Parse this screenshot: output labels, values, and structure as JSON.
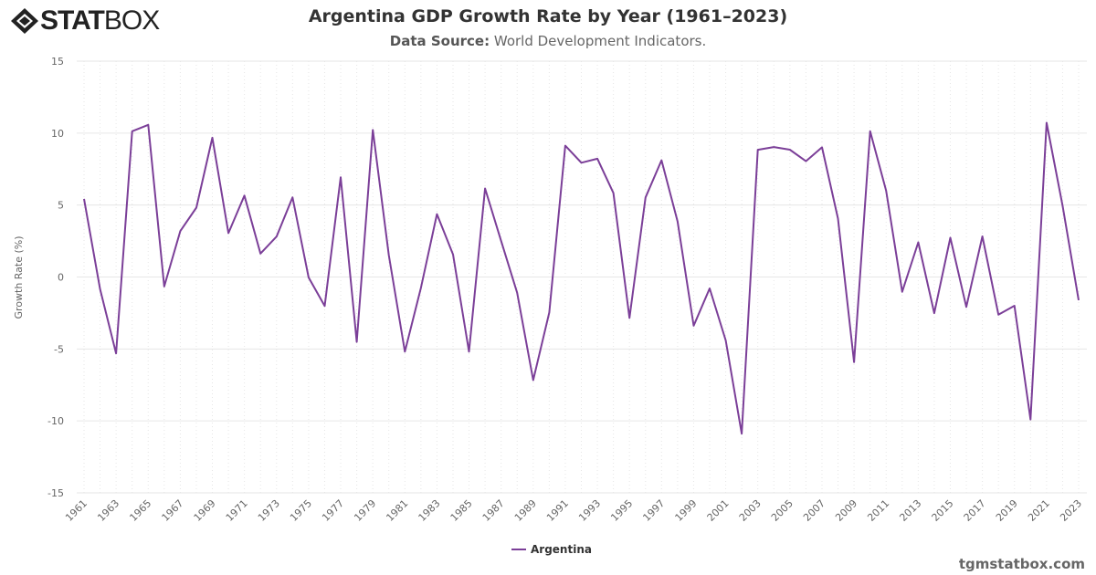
{
  "brand": {
    "logo_text_bold": "STAT",
    "logo_text_light": "BOX"
  },
  "header": {
    "title": "Argentina GDP Growth Rate by Year (1961–2023)",
    "source_label": "Data Source:",
    "source_value": "World Development Indicators."
  },
  "footer": {
    "credit": "tgmstatbox.com"
  },
  "chart_data": {
    "type": "line",
    "title": "Argentina GDP Growth Rate by Year (1961–2023)",
    "ylabel": "Growth Rate (%)",
    "xlabel": "",
    "ylim": [
      -15,
      15
    ],
    "yticks": [
      15,
      10,
      5,
      0,
      -5,
      -10,
      -15
    ],
    "xlim": [
      1961,
      2023
    ],
    "grid": true,
    "legend_position": "bottom",
    "color": "#7b3f98",
    "series": [
      {
        "name": "Argentina",
        "x": [
          1961,
          1962,
          1963,
          1964,
          1965,
          1966,
          1967,
          1968,
          1969,
          1970,
          1971,
          1972,
          1973,
          1974,
          1975,
          1976,
          1977,
          1978,
          1979,
          1980,
          1981,
          1982,
          1983,
          1984,
          1985,
          1986,
          1987,
          1988,
          1989,
          1990,
          1991,
          1992,
          1993,
          1994,
          1995,
          1996,
          1997,
          1998,
          1999,
          2000,
          2001,
          2002,
          2003,
          2004,
          2005,
          2006,
          2007,
          2008,
          2009,
          2010,
          2011,
          2012,
          2013,
          2014,
          2015,
          2016,
          2017,
          2018,
          2019,
          2020,
          2021,
          2022,
          2023
        ],
        "values": [
          5.43,
          -0.85,
          -5.31,
          10.13,
          10.57,
          -0.66,
          3.19,
          4.82,
          9.68,
          3.05,
          5.66,
          1.63,
          2.81,
          5.53,
          -0.03,
          -2.02,
          6.93,
          -4.51,
          10.22,
          1.52,
          -5.19,
          -0.74,
          4.37,
          1.57,
          -5.19,
          6.15,
          2.5,
          -1.09,
          -7.17,
          -2.47,
          9.13,
          7.94,
          8.22,
          5.84,
          -2.85,
          5.53,
          8.11,
          3.85,
          -3.39,
          -0.79,
          -4.41,
          -10.89,
          8.84,
          9.03,
          8.85,
          8.05,
          9.01,
          4.06,
          -5.92,
          10.13,
          6.0,
          -1.03,
          2.41,
          -2.51,
          2.73,
          -2.08,
          2.82,
          -2.62,
          -2.0,
          -9.9,
          10.72,
          4.96,
          -1.61
        ]
      }
    ]
  }
}
